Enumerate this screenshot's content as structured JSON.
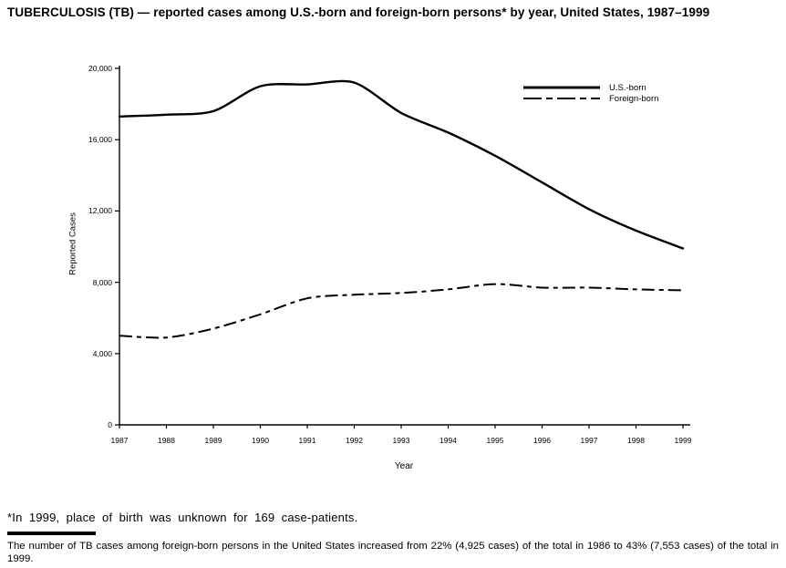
{
  "page": {
    "footnote": "*In 1999, place of birth was unknown for 169 case-patients.",
    "bottom_note": "The number of TB cases among foreign-born persons in the United States increased from 22% (4,925 cases) of the total in 1986 to 43% (7,553 cases) of the total in 1999."
  },
  "chart_data": {
    "type": "line",
    "title": "TUBERCULOSIS (TB) — reported cases among U.S.-born and foreign-born persons* by year, United States, 1987–1999",
    "xlabel": "Year",
    "ylabel": "Reported Cases",
    "x": [
      1987,
      1988,
      1989,
      1990,
      1991,
      1992,
      1993,
      1994,
      1995,
      1996,
      1997,
      1998,
      1999
    ],
    "x_tick_labels": [
      "1987",
      "1988",
      "1989",
      "1990",
      "1991",
      "1992",
      "1993",
      "1994",
      "1995",
      "1996",
      "1997",
      "1998",
      "1999"
    ],
    "ylim": [
      0,
      20000
    ],
    "y_ticks": [
      0,
      4000,
      8000,
      12000,
      16000,
      20000
    ],
    "y_tick_labels": [
      "0",
      "4,000",
      "8,000",
      "12,000",
      "16,000",
      "20,000"
    ],
    "grid": false,
    "legend_position": "top-right",
    "line_color": "#000000",
    "series": [
      {
        "name": "U.S.-born",
        "style": "solid",
        "values": [
          17300,
          17400,
          17600,
          19000,
          19100,
          19200,
          17500,
          16400,
          15100,
          13600,
          12100,
          10900,
          9900
        ]
      },
      {
        "name": "Foreign-born",
        "style": "dashed",
        "values": [
          5000,
          4900,
          5400,
          6200,
          7100,
          7300,
          7400,
          7600,
          7900,
          7700,
          7700,
          7600,
          7550
        ]
      }
    ]
  }
}
